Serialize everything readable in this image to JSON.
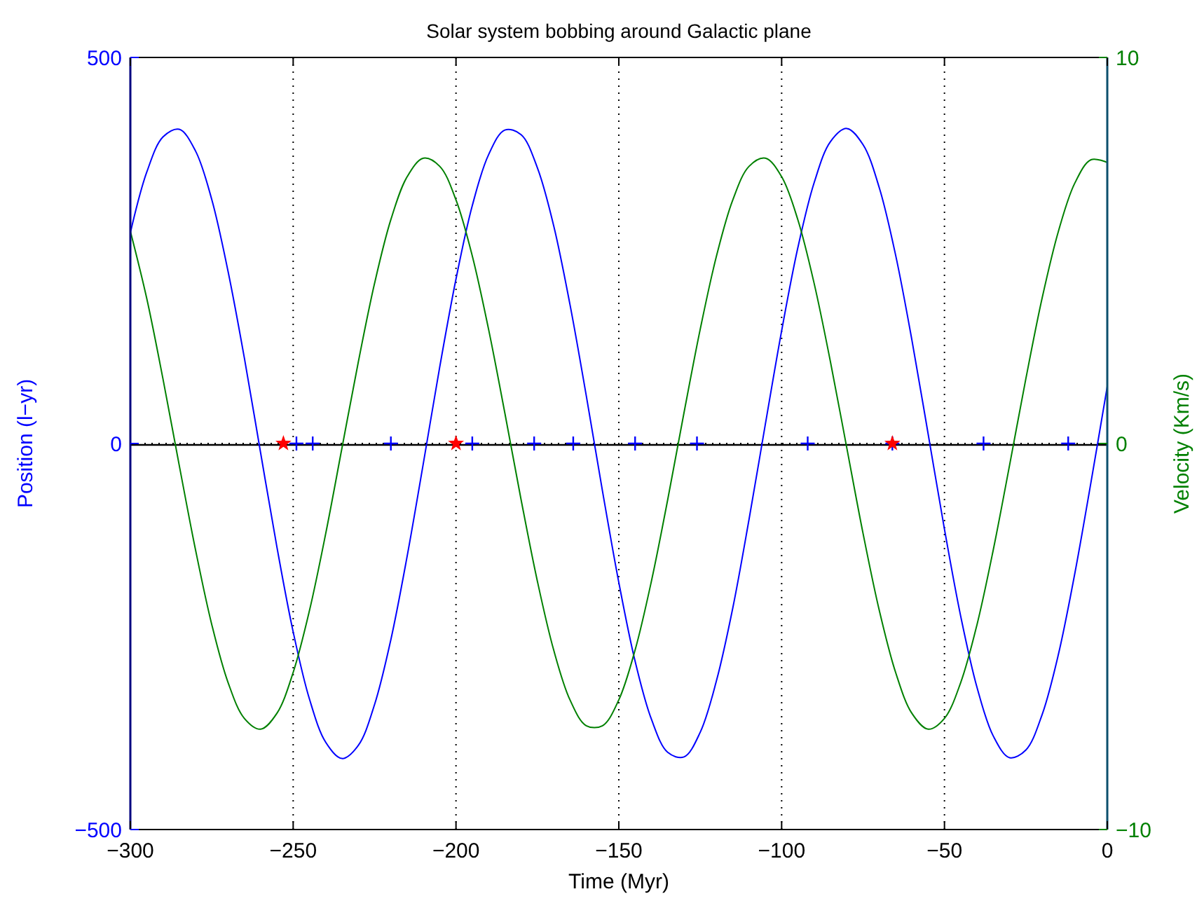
{
  "chart_data": {
    "type": "line",
    "title": "Solar system bobbing around Galactic plane",
    "xlabel": "Time (Myr)",
    "ylabel": "Position (l−yr)",
    "y2label": "Velocity (Km/s)",
    "x": [
      -300,
      -295,
      -290,
      -285,
      -280,
      -275,
      -270,
      -265,
      -260,
      -255,
      -250,
      -245,
      -240,
      -235,
      -230,
      -225,
      -220,
      -215,
      -210,
      -205,
      -200,
      -195,
      -190,
      -185,
      -180,
      -175,
      -170,
      -165,
      -160,
      -155,
      -150,
      -145,
      -140,
      -135,
      -130,
      -125,
      -120,
      -115,
      -110,
      -105,
      -100,
      -95,
      -90,
      -85,
      -80,
      -75,
      -70,
      -65,
      -60,
      -55,
      -50,
      -45,
      -40,
      -35,
      -30,
      -25,
      -20,
      -15,
      -10,
      -5,
      0
    ],
    "xlim": [
      -300,
      0
    ],
    "xticks": [
      -300,
      -250,
      -200,
      -150,
      -100,
      -50,
      0
    ],
    "ylim": [
      -500,
      500
    ],
    "yticks": [
      -500,
      0,
      500
    ],
    "y2lim": [
      -10,
      10
    ],
    "y2ticks": [
      -10,
      0,
      10
    ],
    "grid": true,
    "line_style": "solid",
    "ref_lines": [
      {
        "axis": "y",
        "value": 0,
        "color": "#000000",
        "line_style": "solid"
      }
    ],
    "series": [
      {
        "color": "#0000ff",
        "values": [
          273,
          351,
          397,
          407,
          379,
          316,
          223,
          111,
          -12,
          -134,
          -244,
          -331,
          -387,
          -408,
          -391,
          -338,
          -254,
          -146,
          -25,
          99,
          213,
          308,
          374,
          406,
          400,
          357,
          282,
          180,
          62,
          -62,
          -180,
          -282,
          -357,
          -400,
          -406,
          -374,
          -307,
          -213,
          -98,
          25,
          146,
          254,
          338,
          391,
          408,
          387,
          331,
          244,
          134,
          12,
          -111,
          -224,
          -316,
          -379,
          -407,
          -397,
          -351,
          -273,
          -169,
          -50,
          74
        ]
      },
      {
        "color": "#008000",
        "axis": "y2",
        "values": [
          5.5,
          3.77,
          1.68,
          -0.56,
          -2.75,
          -4.69,
          -6.19,
          -7.12,
          -7.4,
          -6.99,
          -5.93,
          -4.33,
          -2.33,
          -0.11,
          2.11,
          4.15,
          5.8,
          6.91,
          7.39,
          7.18,
          6.31,
          4.86,
          2.96,
          0.79,
          -1.46,
          -3.57,
          -5.35,
          -6.64,
          -7.31,
          -7.31,
          -6.64,
          -5.35,
          -3.57,
          -1.46,
          0.79,
          2.96,
          4.86,
          6.31,
          7.18,
          7.39,
          6.91,
          5.79,
          4.14,
          2.11,
          -0.11,
          -2.33,
          -4.33,
          -5.93,
          -6.99,
          -7.4,
          -7.12,
          -6.19,
          -4.69,
          -2.75,
          -0.56,
          1.68,
          3.77,
          5.5,
          6.74,
          7.35,
          7.28
        ]
      },
      {
        "type": "scatter",
        "color": "#0000ff",
        "marker": "cross",
        "x": [
          -249,
          -244,
          -220,
          -195,
          -176,
          -164,
          -145,
          -126,
          -92,
          -66,
          -38,
          -12
        ],
        "values": [
          0,
          0,
          0,
          0,
          0,
          0,
          0,
          0,
          0,
          0,
          0,
          0
        ]
      },
      {
        "type": "scatter",
        "color": "#ff0000",
        "marker": "star",
        "x": [
          -253,
          -200,
          -66
        ],
        "values": [
          0,
          0,
          0
        ]
      }
    ]
  }
}
